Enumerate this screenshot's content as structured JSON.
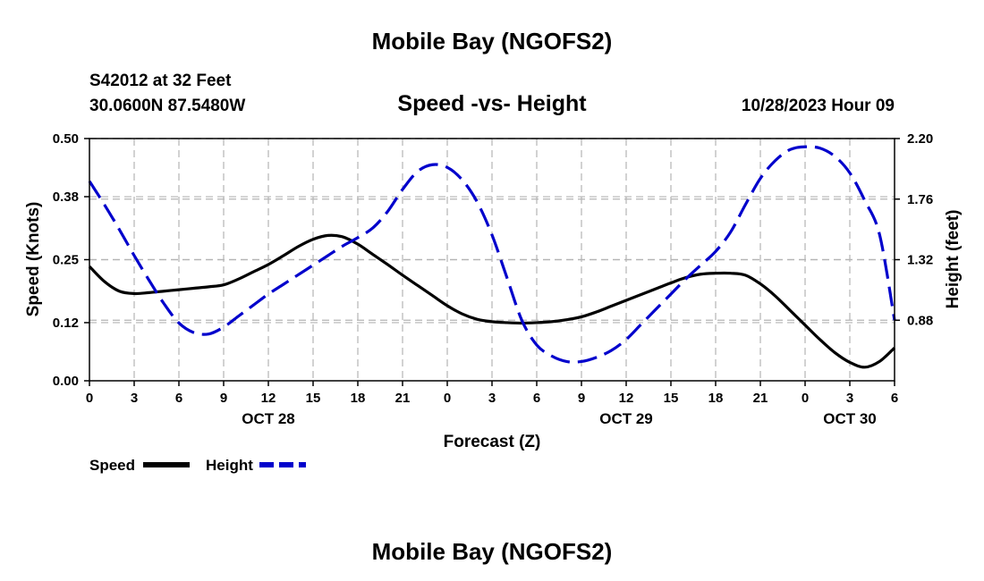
{
  "header": {
    "title": "Mobile Bay (NGOFS2)",
    "station": "S42012 at 32 Feet",
    "location": "30.0600N  87.5480W",
    "datetime": "10/28/2023 Hour 09"
  },
  "footer": {
    "title": "Mobile Bay (NGOFS2)"
  },
  "chart_data": {
    "type": "line",
    "title": "Speed -vs- Height",
    "xlabel": "Forecast (Z)",
    "ylabel": "Speed (Knots)",
    "y2label": "Height (feet)",
    "xlim": [
      0,
      54
    ],
    "ylim": [
      0,
      0.5
    ],
    "y2lim": [
      0.44,
      2.2
    ],
    "x_ticks": [
      0,
      3,
      6,
      9,
      12,
      15,
      18,
      21,
      24,
      27,
      30,
      33,
      36,
      39,
      42,
      45,
      48,
      51,
      54
    ],
    "x_tick_labels": [
      "0",
      "3",
      "6",
      "9",
      "12",
      "15",
      "18",
      "21",
      "0",
      "3",
      "6",
      "9",
      "12",
      "15",
      "18",
      "21",
      "0",
      "3",
      "6"
    ],
    "y_ticks": [
      0.0,
      0.12,
      0.25,
      0.38,
      0.5
    ],
    "y_tick_labels": [
      "0.00",
      "0.12",
      "0.25",
      "0.38",
      "0.50"
    ],
    "y2_ticks": [
      0.88,
      1.32,
      1.76,
      2.2
    ],
    "y2_tick_labels": [
      "0.88",
      "1.32",
      "1.76",
      "2.20"
    ],
    "date_labels": [
      {
        "label": "OCT 28",
        "x": 12
      },
      {
        "label": "OCT 29",
        "x": 36
      },
      {
        "label": "OCT 30",
        "x": 51
      }
    ],
    "grid": true,
    "legend_position": "bottom-left",
    "series": [
      {
        "name": "Speed",
        "axis": "left",
        "style": "solid",
        "color": "#000000",
        "x": [
          0,
          1,
          2,
          3,
          4,
          5,
          6,
          7,
          8,
          9,
          10,
          11,
          12,
          13,
          14,
          15,
          16,
          17,
          18,
          19,
          20,
          21,
          22,
          23,
          24,
          25,
          26,
          27,
          28,
          29,
          30,
          31,
          32,
          33,
          34,
          35,
          36,
          37,
          38,
          39,
          40,
          41,
          42,
          43,
          44,
          45,
          46,
          47,
          48,
          49,
          50,
          51,
          52,
          53,
          54
        ],
        "y": [
          0.236,
          0.205,
          0.185,
          0.18,
          0.182,
          0.185,
          0.188,
          0.191,
          0.194,
          0.198,
          0.21,
          0.225,
          0.24,
          0.258,
          0.277,
          0.292,
          0.3,
          0.297,
          0.282,
          0.261,
          0.24,
          0.218,
          0.197,
          0.176,
          0.155,
          0.138,
          0.127,
          0.122,
          0.12,
          0.119,
          0.12,
          0.122,
          0.126,
          0.132,
          0.142,
          0.154,
          0.166,
          0.178,
          0.19,
          0.202,
          0.213,
          0.22,
          0.222,
          0.222,
          0.218,
          0.2,
          0.175,
          0.145,
          0.115,
          0.085,
          0.058,
          0.038,
          0.028,
          0.04,
          0.068
        ]
      },
      {
        "name": "Height",
        "axis": "right",
        "style": "dashed",
        "color": "#0000cc",
        "x": [
          0,
          1,
          2,
          3,
          4,
          5,
          6,
          7,
          8,
          9,
          10,
          11,
          12,
          13,
          14,
          15,
          16,
          17,
          18,
          19,
          20,
          21,
          22,
          23,
          24,
          25,
          26,
          27,
          28,
          29,
          30,
          31,
          32,
          33,
          34,
          35,
          36,
          37,
          38,
          39,
          40,
          41,
          42,
          43,
          44,
          45,
          46,
          47,
          48,
          49,
          50,
          51,
          52,
          53,
          54
        ],
        "y": [
          1.89,
          1.72,
          1.54,
          1.35,
          1.17,
          1.0,
          0.86,
          0.79,
          0.78,
          0.83,
          0.91,
          0.99,
          1.07,
          1.14,
          1.21,
          1.28,
          1.35,
          1.42,
          1.48,
          1.55,
          1.67,
          1.83,
          1.96,
          2.01,
          1.99,
          1.9,
          1.74,
          1.5,
          1.19,
          0.88,
          0.7,
          0.62,
          0.58,
          0.58,
          0.61,
          0.66,
          0.74,
          0.85,
          0.96,
          1.07,
          1.18,
          1.28,
          1.38,
          1.52,
          1.72,
          1.91,
          2.04,
          2.12,
          2.14,
          2.13,
          2.07,
          1.95,
          1.75,
          1.5,
          0.88
        ]
      }
    ]
  }
}
